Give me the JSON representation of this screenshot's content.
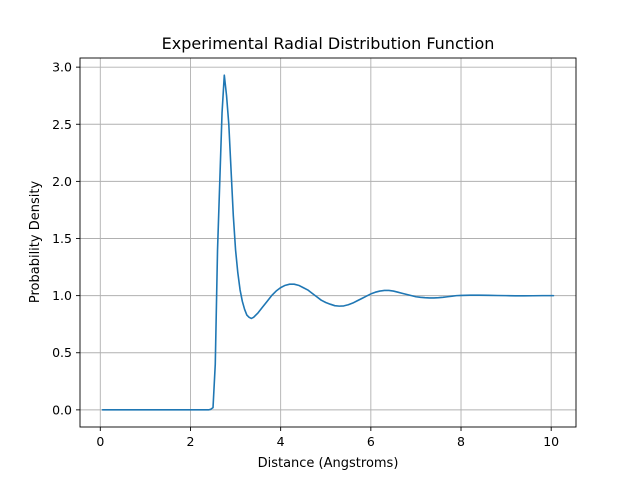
{
  "chart_data": {
    "type": "line",
    "title": "Experimental Radial Distribution Function",
    "xlabel": "Distance (Angstroms)",
    "ylabel": "Probability Density",
    "xlim": [
      -0.45,
      10.55
    ],
    "ylim": [
      -0.15,
      3.08
    ],
    "xticks": [
      0,
      2,
      4,
      6,
      8,
      10
    ],
    "xtick_labels": [
      "0",
      "2",
      "4",
      "6",
      "8",
      "10"
    ],
    "yticks": [
      0.0,
      0.5,
      1.0,
      1.5,
      2.0,
      2.5,
      3.0
    ],
    "ytick_labels": [
      "0.0",
      "0.5",
      "1.0",
      "1.5",
      "2.0",
      "2.5",
      "3.0"
    ],
    "grid": true,
    "line_color": "#1f77b4",
    "series": [
      {
        "x": [
          0.05,
          0.5,
          1.0,
          1.5,
          2.0,
          2.3,
          2.4,
          2.45,
          2.5,
          2.55,
          2.6,
          2.65,
          2.7,
          2.75,
          2.8,
          2.85,
          2.9,
          2.95,
          3.0,
          3.05,
          3.1,
          3.15,
          3.2,
          3.25,
          3.3,
          3.35,
          3.4,
          3.5,
          3.6,
          3.7,
          3.8,
          3.9,
          4.0,
          4.1,
          4.2,
          4.3,
          4.4,
          4.5,
          4.6,
          4.7,
          4.8,
          4.9,
          5.0,
          5.1,
          5.2,
          5.3,
          5.4,
          5.5,
          5.6,
          5.7,
          5.8,
          5.9,
          6.0,
          6.1,
          6.2,
          6.3,
          6.4,
          6.5,
          6.6,
          6.7,
          6.8,
          6.9,
          7.0,
          7.1,
          7.2,
          7.3,
          7.4,
          7.5,
          7.6,
          7.7,
          7.8,
          7.9,
          8.0,
          8.2,
          8.4,
          8.6,
          8.8,
          9.0,
          9.2,
          9.4,
          9.6,
          9.8,
          10.0,
          10.05
        ],
        "y": [
          0.0,
          0.0,
          0.0,
          0.0,
          0.0,
          0.0,
          0.0,
          0.005,
          0.02,
          0.4,
          1.4,
          2.0,
          2.6,
          2.93,
          2.75,
          2.5,
          2.1,
          1.7,
          1.4,
          1.2,
          1.05,
          0.95,
          0.88,
          0.83,
          0.81,
          0.8,
          0.81,
          0.85,
          0.9,
          0.95,
          1.0,
          1.04,
          1.07,
          1.09,
          1.1,
          1.1,
          1.09,
          1.07,
          1.05,
          1.02,
          0.99,
          0.96,
          0.94,
          0.925,
          0.912,
          0.908,
          0.91,
          0.92,
          0.935,
          0.955,
          0.975,
          0.995,
          1.015,
          1.03,
          1.04,
          1.045,
          1.045,
          1.04,
          1.03,
          1.02,
          1.01,
          1.0,
          0.99,
          0.985,
          0.982,
          0.98,
          0.98,
          0.982,
          0.985,
          0.99,
          0.995,
          1.0,
          1.002,
          1.004,
          1.004,
          1.003,
          1.001,
          1.0,
          0.998,
          0.998,
          0.999,
          1.0,
          1.0,
          1.0
        ]
      }
    ]
  }
}
